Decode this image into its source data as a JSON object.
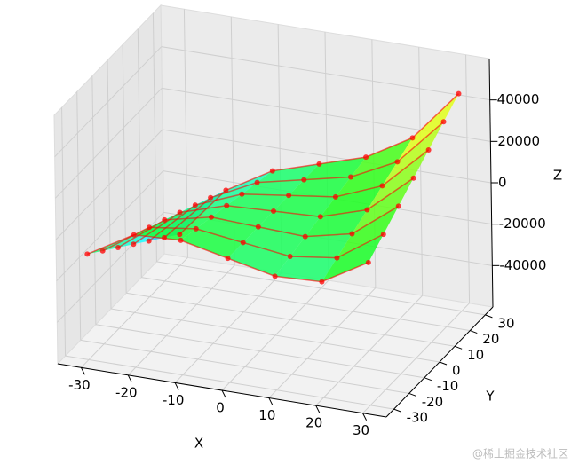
{
  "chart_data": {
    "type": "surface3d",
    "x_label": "X",
    "y_label": "Y",
    "z_label": "Z",
    "x": [
      -30,
      -20,
      -10,
      0,
      10,
      20,
      30
    ],
    "y": [
      -30,
      -20,
      -10,
      0,
      10,
      20,
      30
    ],
    "z": [
      [
        -9000,
        -15000,
        -21000,
        -27000,
        -33000,
        -39000,
        -45000
      ],
      [
        4000,
        0,
        -4000,
        -8000,
        -12000,
        -16000,
        -20000
      ],
      [
        5000,
        3000,
        1000,
        -1000,
        -3000,
        -5000,
        -7000
      ],
      [
        0,
        0,
        0,
        0,
        0,
        0,
        0
      ],
      [
        -5000,
        -3000,
        -1000,
        1000,
        3000,
        5000,
        7000
      ],
      [
        -4000,
        0,
        4000,
        8000,
        12000,
        16000,
        20000
      ],
      [
        9000,
        15000,
        21000,
        27000,
        33000,
        39000,
        45000
      ]
    ],
    "xlim": [
      -35,
      35
    ],
    "ylim": [
      -35,
      35
    ],
    "zlim": [
      -60000,
      60000
    ],
    "xticks": [
      -30,
      -20,
      -10,
      0,
      10,
      20,
      30
    ],
    "yticks": [
      -30,
      -20,
      -10,
      0,
      10,
      20,
      30
    ],
    "zticks": [
      -40000,
      -20000,
      0,
      20000,
      40000
    ],
    "colormap": "rainbow",
    "point_color": "#ff0000",
    "grid": true,
    "watermark": "@稀土掘金技术社区"
  }
}
